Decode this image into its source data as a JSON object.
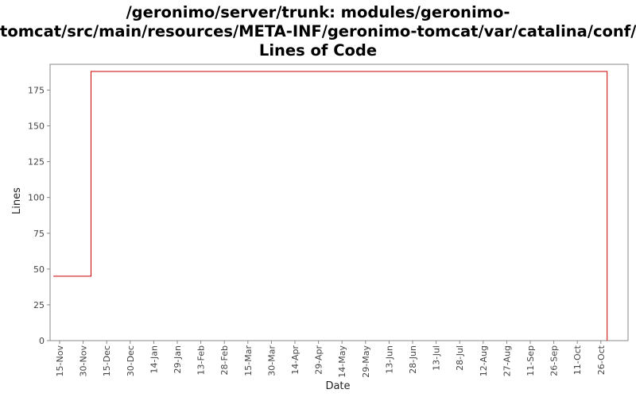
{
  "chart_data": {
    "type": "line",
    "title_lines": [
      "/geronimo/server/trunk: modules/geronimo-",
      "tomcat/src/main/resources/META-INF/geronimo-tomcat/var/catalina/conf/",
      "Lines of Code"
    ],
    "xlabel": "Date",
    "ylabel": "Lines",
    "x_ticks": [
      "15-Nov",
      "30-Nov",
      "15-Dec",
      "30-Dec",
      "14-Jan",
      "29-Jan",
      "13-Feb",
      "28-Feb",
      "15-Mar",
      "30-Mar",
      "14-Apr",
      "29-Apr",
      "14-May",
      "29-May",
      "13-Jun",
      "28-Jun",
      "13-Jul",
      "28-Jul",
      "12-Aug",
      "27-Aug",
      "11-Sep",
      "26-Sep",
      "11-Oct",
      "26-Oct"
    ],
    "y_ticks": [
      0,
      25,
      50,
      75,
      100,
      125,
      150,
      175
    ],
    "ylim": [
      0,
      193
    ],
    "step": "after",
    "series": [
      {
        "color": "#cc0000",
        "points": [
          {
            "x": "11-Nov",
            "y": 45
          },
          {
            "x": "24-Nov",
            "y": 45
          },
          {
            "x": "5-Dec",
            "y": 188
          },
          {
            "x": "29-Oct",
            "y": 188
          },
          {
            "x": "30-Oct",
            "y": 0
          }
        ]
      }
    ],
    "grid": false,
    "legend": "none"
  },
  "colors": {
    "series_line": "#cc0000",
    "axis": "#888888",
    "tick_text": "#444444"
  }
}
